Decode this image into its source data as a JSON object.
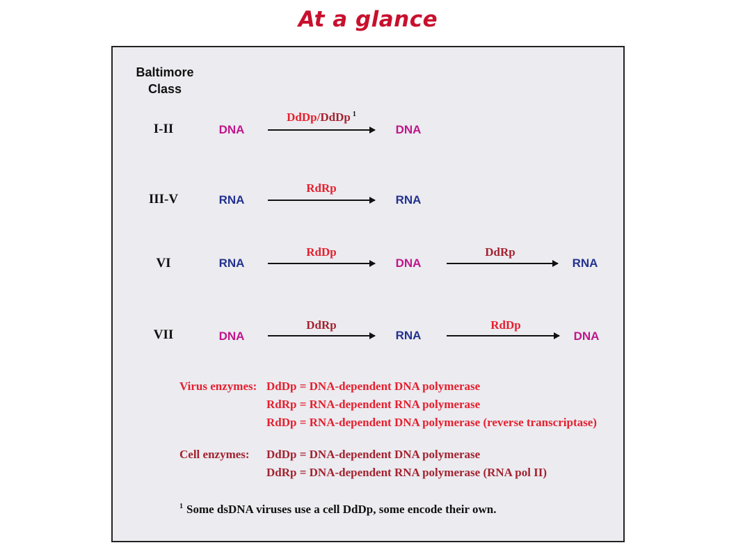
{
  "title": "At a glance",
  "header": {
    "line1": "Baltimore",
    "line2": "Class"
  },
  "colors": {
    "dna": "#c0168a",
    "rna": "#24318f",
    "virus_enzyme": "#e5202e",
    "cell_enzyme": "#a3232f",
    "title": "#c8102e"
  },
  "rows": [
    {
      "class": "I-II",
      "m1": "DNA",
      "e1a": "DdDp",
      "e1sep": "/",
      "e1b": "DdDp",
      "e1sup": "1",
      "m2": "DNA"
    },
    {
      "class": "III-V",
      "m1": "RNA",
      "e1": "RdRp",
      "m2": "RNA"
    },
    {
      "class": "VI",
      "m1": "RNA",
      "e1": "RdDp",
      "m2": "DNA",
      "e2": "DdRp",
      "m3": "RNA"
    },
    {
      "class": "VII",
      "m1": "DNA",
      "e1": "DdRp",
      "m2": "RNA",
      "e2": "RdDp",
      "m3": "DNA"
    }
  ],
  "legend": {
    "virus_label": "Virus enzymes:",
    "virus_items": [
      "DdDp = DNA-dependent DNA polymerase",
      "RdRp = RNA-dependent RNA polymerase",
      "RdDp = RNA-dependent DNA polymerase (reverse transcriptase)"
    ],
    "cell_label": "Cell enzymes:",
    "cell_items": [
      "DdDp = DNA-dependent DNA polymerase",
      "DdRp = DNA-dependent RNA polymerase (RNA pol II)"
    ]
  },
  "footnote": {
    "marker": "1",
    "text": "Some dsDNA viruses use a cell DdDp, some encode their own."
  }
}
